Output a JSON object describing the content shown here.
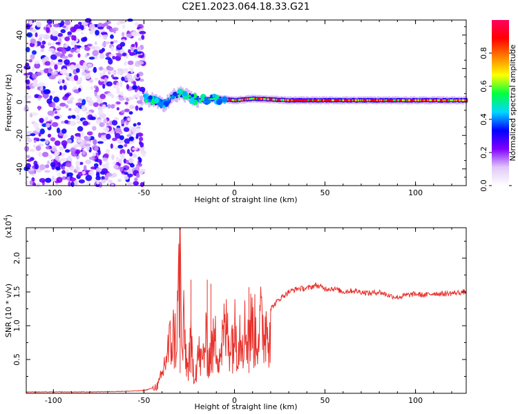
{
  "figure": {
    "title": "C2E1.2023.064.18.33.G21"
  },
  "chart_data": [
    {
      "type": "heatmap",
      "xlabel": "Height of straight line (km)",
      "ylabel": "Frequency (Hz)",
      "xlim": [
        -115,
        128
      ],
      "ylim": [
        -50,
        49
      ],
      "xticks": [
        -100,
        -50,
        0,
        50,
        100
      ],
      "yticks": [
        -40,
        -20,
        0,
        20,
        40
      ],
      "grid": false,
      "colorbar": {
        "label": "Normalized spectral amplitude",
        "range": [
          0.0,
          1.0
        ],
        "ticks": [
          0.0,
          0.2,
          0.4,
          0.6,
          0.8
        ],
        "tick_labels": [
          "0.0",
          "0.2",
          "0.4",
          "0.6",
          "0.8"
        ],
        "colormap": [
          "#ffffff",
          "#e0c8f8",
          "#8000ff",
          "#0000ff",
          "#00d8ff",
          "#00ff40",
          "#ffff00",
          "#ff8000",
          "#ff0000",
          "#ff0060"
        ]
      },
      "regions": [
        {
          "name": "noise",
          "x_range": [
            -115,
            -50
          ],
          "y_range": [
            -50,
            49
          ],
          "amplitude_range": [
            0.05,
            0.35
          ]
        },
        {
          "name": "carrier",
          "x_range": [
            -50,
            128
          ],
          "center_freq": [
            [
              -50,
              2
            ],
            [
              -45,
              1
            ],
            [
              -40,
              -2
            ],
            [
              -35,
              3
            ],
            [
              -30,
              5
            ],
            [
              -25,
              3
            ],
            [
              -20,
              1
            ],
            [
              -10,
              2
            ],
            [
              0,
              1
            ],
            [
              10,
              2
            ],
            [
              30,
              1
            ],
            [
              128,
              1
            ]
          ],
          "amplitude_range": [
            0.3,
            0.95
          ]
        }
      ]
    },
    {
      "type": "line",
      "xlabel": "Height of straight line (km)",
      "ylabel": "SNR (10 * v/v)",
      "y_multiplier_label": "(x10",
      "y_multiplier_exp": "4",
      "y_multiplier_close": ")",
      "xlim": [
        -115,
        128
      ],
      "ylim": [
        0,
        2.45
      ],
      "xticks": [
        -100,
        -50,
        0,
        50,
        100
      ],
      "yticks": [
        0.5,
        1.0,
        1.5,
        2.0
      ],
      "ytick_labels": [
        "0.5",
        "1.0",
        "1.5",
        "2.0"
      ],
      "line_color": "#e8302a",
      "grid": false,
      "series": [
        {
          "x": [
            -115,
            -100,
            -80,
            -60,
            -50,
            -45,
            -42,
            -40,
            -38,
            -36,
            -34,
            -32,
            -30,
            -29,
            -28,
            -26,
            -24,
            -22,
            -20,
            -18,
            -16,
            -14,
            -12,
            -10,
            -8,
            -6,
            -4,
            -2,
            0,
            2,
            4,
            6,
            8,
            10,
            12,
            14,
            16,
            18,
            20,
            25,
            30,
            35,
            40,
            45,
            50,
            55,
            60,
            65,
            70,
            75,
            80,
            85,
            90,
            95,
            100,
            105,
            110,
            115,
            120,
            128
          ],
          "y": [
            0.02,
            0.02,
            0.02,
            0.03,
            0.04,
            0.08,
            0.15,
            0.3,
            0.6,
            0.8,
            1.0,
            0.9,
            2.45,
            0.6,
            1.1,
            0.4,
            0.8,
            0.3,
            0.7,
            0.5,
            0.9,
            0.6,
            0.8,
            0.9,
            0.7,
            1.0,
            1.1,
            0.9,
            1.05,
            1.0,
            1.15,
            1.05,
            1.1,
            1.15,
            1.0,
            1.2,
            1.1,
            1.2,
            1.25,
            1.4,
            1.5,
            1.55,
            1.55,
            1.6,
            1.55,
            1.55,
            1.5,
            1.52,
            1.5,
            1.48,
            1.5,
            1.45,
            1.42,
            1.45,
            1.47,
            1.45,
            1.48,
            1.47,
            1.48,
            1.5
          ]
        }
      ],
      "spikes": [
        {
          "x": -30,
          "y": 2.45
        },
        {
          "x": -24,
          "y": 1.68
        },
        {
          "x": -15,
          "y": 1.68
        },
        {
          "x": -13,
          "y": 1.62
        },
        {
          "x": 8,
          "y": 1.57
        }
      ]
    }
  ]
}
